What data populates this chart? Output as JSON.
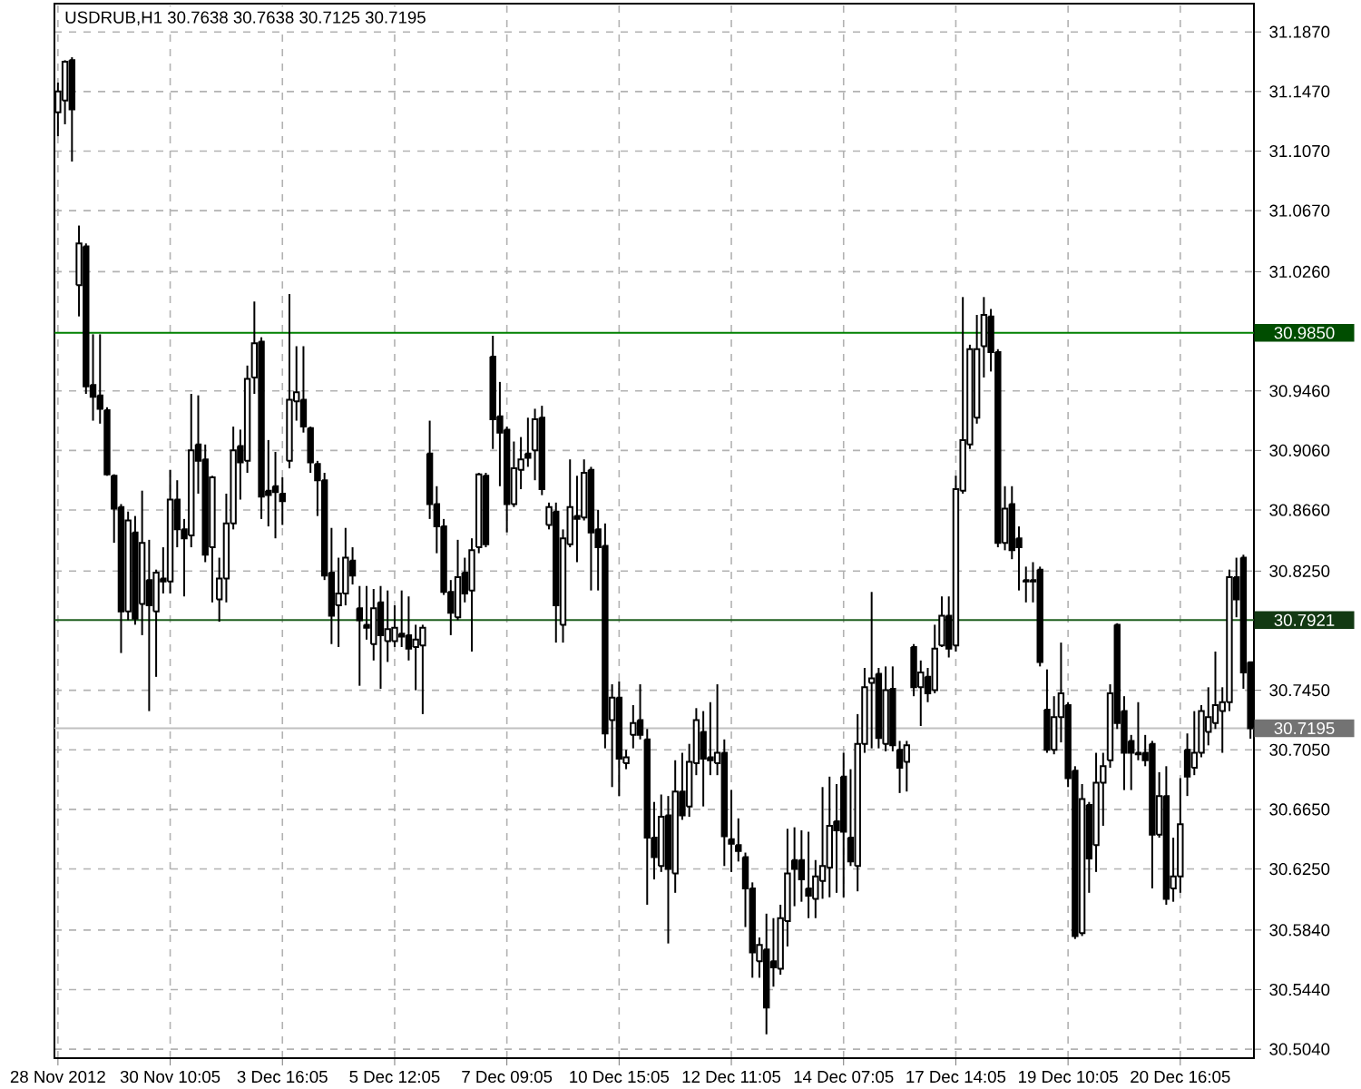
{
  "chart_data": {
    "type": "candlestick",
    "title": "USDRUB,H1  30.7638 30.7638 30.7125 30.7195",
    "categories": [
      "28 Nov 2012",
      null,
      null,
      null,
      null,
      null,
      null,
      null,
      null,
      null,
      null,
      null,
      null,
      null,
      null,
      null,
      "30 Nov 10:05",
      null,
      null,
      null,
      null,
      null,
      null,
      null,
      null,
      null,
      null,
      null,
      null,
      null,
      null,
      null,
      "3 Dec 16:05",
      null,
      null,
      null,
      null,
      null,
      null,
      null,
      null,
      null,
      null,
      null,
      null,
      null,
      null,
      null,
      "5 Dec 12:05",
      null,
      null,
      null,
      null,
      null,
      null,
      null,
      null,
      null,
      null,
      null,
      null,
      null,
      null,
      null,
      "7 Dec 09:05",
      null,
      null,
      null,
      null,
      null,
      null,
      null,
      null,
      null,
      null,
      null,
      null,
      null,
      null,
      null,
      "10 Dec 15:05",
      null,
      null,
      null,
      null,
      null,
      null,
      null,
      null,
      null,
      null,
      null,
      null,
      null,
      null,
      null,
      "12 Dec 11:05",
      null,
      null,
      null,
      null,
      null,
      null,
      null,
      null,
      null,
      null,
      null,
      null,
      null,
      null,
      null,
      "14 Dec 07:05",
      null,
      null,
      null,
      null,
      null,
      null,
      null,
      null,
      null,
      null,
      null,
      null,
      null,
      null,
      null,
      "17 Dec 14:05",
      null,
      null,
      null,
      null,
      null,
      null,
      null,
      null,
      null,
      null,
      null,
      null,
      null,
      null,
      null,
      "19 Dec 10:05",
      null,
      null,
      null,
      null,
      null,
      null,
      null,
      null,
      null,
      null,
      null,
      null,
      null,
      null,
      null,
      "20 Dec 16:05",
      null,
      null,
      null,
      null,
      null,
      null,
      null,
      null,
      null,
      null
    ],
    "ohlc": [
      [
        31.133,
        31.153,
        31.117,
        31.147
      ],
      [
        31.141,
        31.168,
        31.125,
        31.167
      ],
      [
        31.168,
        31.17,
        31.1,
        31.135
      ],
      [
        31.017,
        31.057,
        30.996,
        31.045
      ],
      [
        31.043,
        31.045,
        30.944,
        30.949
      ],
      [
        30.95,
        30.984,
        30.926,
        30.942
      ],
      [
        30.943,
        30.984,
        30.924,
        30.934
      ],
      [
        30.933,
        30.935,
        30.889,
        30.89
      ],
      [
        30.889,
        30.89,
        30.844,
        30.867
      ],
      [
        30.868,
        30.87,
        30.77,
        30.798
      ],
      [
        30.798,
        30.865,
        30.792,
        30.859
      ],
      [
        30.851,
        30.862,
        30.789,
        30.793
      ],
      [
        30.803,
        30.879,
        30.782,
        30.844
      ],
      [
        30.819,
        30.846,
        30.731,
        30.802
      ],
      [
        30.798,
        30.826,
        30.754,
        30.824
      ],
      [
        30.82,
        30.841,
        30.81,
        30.818
      ],
      [
        30.818,
        30.893,
        30.81,
        30.873
      ],
      [
        30.873,
        30.886,
        30.841,
        30.853
      ],
      [
        30.853,
        30.86,
        30.808,
        30.847
      ],
      [
        30.849,
        30.944,
        30.841,
        30.906
      ],
      [
        30.91,
        30.943,
        30.877,
        30.899
      ],
      [
        30.9,
        30.91,
        30.831,
        30.836
      ],
      [
        30.841,
        30.889,
        30.804,
        30.888
      ],
      [
        30.806,
        30.834,
        30.791,
        30.82
      ],
      [
        30.82,
        30.877,
        30.804,
        30.857
      ],
      [
        30.857,
        30.922,
        30.853,
        30.906
      ],
      [
        30.909,
        30.92,
        30.873,
        30.898
      ],
      [
        30.899,
        30.963,
        30.891,
        30.954
      ],
      [
        30.955,
        31.006,
        30.944,
        30.978
      ],
      [
        30.979,
        30.982,
        30.86,
        30.875
      ],
      [
        30.879,
        30.913,
        30.855,
        30.876
      ],
      [
        30.882,
        30.905,
        30.847,
        30.878
      ],
      [
        30.877,
        30.888,
        30.856,
        30.872
      ],
      [
        30.899,
        31.011,
        30.894,
        30.94
      ],
      [
        30.939,
        30.976,
        30.926,
        30.945
      ],
      [
        30.94,
        30.976,
        30.918,
        30.922
      ],
      [
        30.921,
        30.922,
        30.891,
        30.898
      ],
      [
        30.897,
        30.899,
        30.862,
        30.886
      ],
      [
        30.886,
        30.891,
        30.819,
        30.822
      ],
      [
        30.824,
        30.854,
        30.776,
        30.795
      ],
      [
        30.802,
        30.834,
        30.774,
        30.81
      ],
      [
        30.81,
        30.854,
        30.802,
        30.834
      ],
      [
        30.832,
        30.841,
        30.816,
        30.822
      ],
      [
        30.8,
        30.815,
        30.748,
        30.792
      ],
      [
        30.789,
        30.815,
        30.779,
        30.787
      ],
      [
        30.776,
        30.813,
        30.765,
        30.8
      ],
      [
        30.804,
        30.815,
        30.746,
        30.782
      ],
      [
        30.778,
        30.812,
        30.764,
        30.786
      ],
      [
        30.778,
        30.802,
        30.774,
        30.787
      ],
      [
        30.783,
        30.812,
        30.774,
        30.781
      ],
      [
        30.782,
        30.808,
        30.765,
        30.773
      ],
      [
        30.774,
        30.789,
        30.745,
        30.779
      ],
      [
        30.775,
        30.789,
        30.729,
        30.787
      ],
      [
        30.904,
        30.926,
        30.86,
        30.87
      ],
      [
        30.87,
        30.882,
        30.837,
        30.855
      ],
      [
        30.855,
        30.86,
        30.809,
        30.811
      ],
      [
        30.811,
        30.819,
        30.782,
        30.797
      ],
      [
        30.794,
        30.846,
        30.792,
        30.821
      ],
      [
        30.824,
        30.834,
        30.804,
        30.81
      ],
      [
        30.812,
        30.847,
        30.771,
        30.839
      ],
      [
        30.841,
        30.891,
        30.837,
        30.89
      ],
      [
        30.889,
        30.891,
        30.841,
        30.843
      ],
      [
        30.969,
        30.983,
        30.907,
        30.927
      ],
      [
        30.929,
        30.952,
        30.882,
        30.918
      ],
      [
        30.92,
        30.922,
        30.851,
        30.87
      ],
      [
        30.87,
        30.912,
        30.868,
        30.894
      ],
      [
        30.893,
        30.915,
        30.88,
        30.9
      ],
      [
        30.904,
        30.928,
        30.895,
        30.901
      ],
      [
        30.906,
        30.934,
        30.886,
        30.927
      ],
      [
        30.928,
        30.936,
        30.876,
        30.88
      ],
      [
        30.856,
        30.871,
        30.853,
        30.868
      ],
      [
        30.865,
        30.871,
        30.777,
        30.802
      ],
      [
        30.789,
        30.853,
        30.777,
        30.847
      ],
      [
        30.843,
        30.9,
        30.841,
        30.868
      ],
      [
        30.862,
        30.889,
        30.831,
        30.86
      ],
      [
        30.861,
        30.9,
        30.859,
        30.891
      ],
      [
        30.893,
        30.895,
        30.812,
        30.851
      ],
      [
        30.853,
        30.866,
        30.812,
        30.841
      ],
      [
        30.842,
        30.857,
        30.706,
        30.716
      ],
      [
        30.725,
        30.749,
        30.68,
        30.74
      ],
      [
        30.74,
        30.751,
        30.674,
        30.699
      ],
      [
        30.696,
        30.705,
        30.692,
        30.7
      ],
      [
        30.715,
        30.735,
        30.706,
        30.723
      ],
      [
        30.725,
        30.749,
        30.712,
        30.715
      ],
      [
        30.712,
        30.719,
        30.601,
        30.646
      ],
      [
        30.646,
        30.67,
        30.618,
        30.633
      ],
      [
        30.627,
        30.675,
        30.623,
        30.66
      ],
      [
        30.661,
        30.674,
        30.575,
        30.625
      ],
      [
        30.622,
        30.698,
        30.609,
        30.677
      ],
      [
        30.677,
        30.703,
        30.658,
        30.661
      ],
      [
        30.667,
        30.709,
        30.66,
        30.697
      ],
      [
        30.696,
        30.733,
        30.688,
        30.725
      ],
      [
        30.717,
        30.731,
        30.667,
        30.699
      ],
      [
        30.7,
        30.737,
        30.688,
        30.698
      ],
      [
        30.696,
        30.749,
        30.688,
        30.703
      ],
      [
        30.703,
        30.712,
        30.627,
        30.647
      ],
      [
        30.645,
        30.678,
        30.623,
        30.642
      ],
      [
        30.641,
        30.659,
        30.63,
        30.637
      ],
      [
        30.633,
        30.636,
        30.586,
        30.612
      ],
      [
        30.612,
        30.616,
        30.552,
        30.569
      ],
      [
        30.563,
        30.579,
        30.552,
        30.574
      ],
      [
        30.571,
        30.595,
        30.514,
        30.532
      ],
      [
        30.563,
        30.592,
        30.546,
        30.559
      ],
      [
        30.558,
        30.601,
        30.554,
        30.592
      ],
      [
        30.59,
        30.652,
        30.573,
        30.622
      ],
      [
        30.631,
        30.653,
        30.6,
        30.625
      ],
      [
        30.631,
        30.651,
        30.603,
        30.618
      ],
      [
        30.612,
        30.65,
        30.592,
        30.607
      ],
      [
        30.605,
        30.631,
        30.592,
        30.62
      ],
      [
        30.617,
        30.68,
        30.605,
        30.627
      ],
      [
        30.626,
        30.687,
        30.606,
        30.654
      ],
      [
        30.657,
        30.682,
        30.609,
        30.651
      ],
      [
        30.687,
        30.703,
        30.606,
        30.65
      ],
      [
        30.646,
        30.692,
        30.627,
        30.63
      ],
      [
        30.627,
        30.729,
        30.61,
        30.709
      ],
      [
        30.709,
        30.76,
        30.703,
        30.747
      ],
      [
        30.75,
        30.811,
        30.706,
        30.753
      ],
      [
        30.756,
        30.76,
        30.706,
        30.713
      ],
      [
        30.709,
        30.761,
        30.704,
        30.745
      ],
      [
        30.746,
        30.761,
        30.704,
        30.708
      ],
      [
        30.705,
        30.711,
        30.676,
        30.693
      ],
      [
        30.697,
        30.711,
        30.677,
        30.708
      ],
      [
        30.774,
        30.776,
        30.741,
        30.747
      ],
      [
        30.747,
        30.765,
        30.721,
        30.757
      ],
      [
        30.754,
        30.76,
        30.737,
        30.743
      ],
      [
        30.745,
        30.789,
        30.743,
        30.773
      ],
      [
        30.775,
        30.808,
        30.774,
        30.795
      ],
      [
        30.795,
        30.808,
        30.767,
        30.773
      ],
      [
        30.775,
        30.889,
        30.771,
        30.88
      ],
      [
        30.879,
        31.009,
        30.877,
        30.913
      ],
      [
        30.91,
        30.977,
        30.907,
        30.974
      ],
      [
        30.928,
        30.997,
        30.924,
        30.974
      ],
      [
        30.976,
        31.009,
        30.955,
        30.997
      ],
      [
        30.996,
        31.001,
        30.959,
        30.972
      ],
      [
        30.972,
        30.974,
        30.841,
        30.844
      ],
      [
        30.844,
        30.882,
        30.839,
        30.867
      ],
      [
        30.87,
        30.882,
        30.833,
        30.839
      ],
      [
        30.847,
        30.855,
        30.812,
        30.841
      ],
      [
        30.819,
        30.828,
        30.804,
        30.818
      ],
      [
        30.819,
        30.831,
        30.804,
        30.818
      ],
      [
        30.826,
        30.828,
        30.761,
        30.764
      ],
      [
        30.732,
        30.759,
        30.703,
        30.705
      ],
      [
        30.705,
        30.741,
        30.702,
        30.727
      ],
      [
        30.727,
        30.777,
        30.71,
        30.743
      ],
      [
        30.735,
        30.737,
        30.68,
        30.686
      ],
      [
        30.691,
        30.694,
        30.578,
        30.58
      ],
      [
        30.582,
        30.682,
        30.58,
        30.672
      ],
      [
        30.668,
        30.67,
        30.609,
        30.632
      ],
      [
        30.641,
        30.703,
        30.623,
        30.683
      ],
      [
        30.683,
        30.703,
        30.654,
        30.694
      ],
      [
        30.698,
        30.749,
        30.693,
        30.743
      ],
      [
        30.789,
        30.79,
        30.719,
        30.723
      ],
      [
        30.731,
        30.741,
        30.678,
        30.703
      ],
      [
        30.711,
        30.715,
        30.678,
        30.703
      ],
      [
        30.703,
        30.737,
        30.698,
        30.702
      ],
      [
        30.703,
        30.715,
        30.694,
        30.698
      ],
      [
        30.709,
        30.711,
        30.612,
        30.648
      ],
      [
        30.648,
        30.69,
        30.646,
        30.674
      ],
      [
        30.674,
        30.694,
        30.601,
        30.605
      ],
      [
        30.612,
        30.646,
        30.603,
        30.62
      ],
      [
        30.62,
        30.686,
        30.609,
        30.655
      ],
      [
        30.705,
        30.716,
        30.674,
        30.687
      ],
      [
        30.693,
        30.731,
        30.688,
        30.703
      ],
      [
        30.703,
        30.735,
        30.7,
        30.731
      ],
      [
        30.717,
        30.747,
        30.708,
        30.727
      ],
      [
        30.723,
        30.771,
        30.719,
        30.735
      ],
      [
        30.731,
        30.747,
        30.703,
        30.737
      ],
      [
        30.737,
        30.826,
        30.731,
        30.821
      ],
      [
        30.821,
        30.834,
        30.794,
        30.806
      ],
      [
        30.834,
        30.836,
        30.746,
        30.757
      ],
      [
        30.7638,
        30.7638,
        30.7125,
        30.7195
      ]
    ],
    "color": "#000000",
    "ylim": [
      30.498,
      31.206
    ],
    "yticks": [
      {
        "value": 30.504,
        "label": "30.5040"
      },
      {
        "value": 30.544,
        "label": "30.5440"
      },
      {
        "value": 30.584,
        "label": "30.5840"
      },
      {
        "value": 30.625,
        "label": "30.6250"
      },
      {
        "value": 30.665,
        "label": "30.6650"
      },
      {
        "value": 30.705,
        "label": "30.7050"
      },
      {
        "value": 30.745,
        "label": "30.7450"
      },
      {
        "value": 30.825,
        "label": "30.8250"
      },
      {
        "value": 30.866,
        "label": "30.8660"
      },
      {
        "value": 30.906,
        "label": "30.9060"
      },
      {
        "value": 30.946,
        "label": "30.9460"
      },
      {
        "value": 31.026,
        "label": "31.0260"
      },
      {
        "value": 31.067,
        "label": "31.0670"
      },
      {
        "value": 31.107,
        "label": "31.1070"
      },
      {
        "value": 31.147,
        "label": "31.1470"
      },
      {
        "value": 31.187,
        "label": "31.1870"
      }
    ],
    "ref_lines": [
      {
        "axis": "y",
        "value": 30.985,
        "label": "30.9850",
        "color": "#008000"
      },
      {
        "axis": "y",
        "value": 30.7921,
        "label": "30.7921",
        "color": "#1f5f1f"
      },
      {
        "axis": "y",
        "value": 30.7195,
        "label": "30.7195",
        "color": "#c0c0c0"
      }
    ],
    "grid": true
  }
}
